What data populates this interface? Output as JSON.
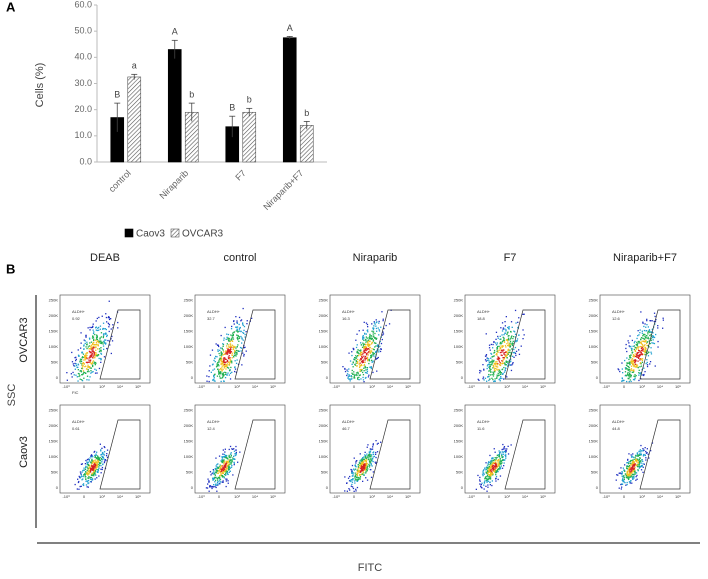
{
  "panels": {
    "a": "A",
    "b": "B"
  },
  "chart_data": {
    "type": "bar",
    "y_label": "Cells (%)",
    "categories": [
      "control",
      "Niraparib",
      "F7",
      "Niraparib+F7"
    ],
    "series": [
      {
        "name": "Caov3",
        "color": "#000000",
        "hatch": false,
        "values": [
          17,
          43,
          13.5,
          47.5
        ],
        "errors": [
          5.5,
          3.5,
          4,
          0.5
        ],
        "letters": [
          "B",
          "A",
          "B",
          "A"
        ]
      },
      {
        "name": "OVCAR3",
        "color": "#ffffff",
        "hatch": true,
        "values": [
          32.5,
          19,
          19,
          14
        ],
        "errors": [
          1,
          3.5,
          1.5,
          1.5
        ],
        "letters": [
          "a",
          "b",
          "b",
          "b"
        ]
      }
    ],
    "ylim": [
      0,
      60
    ],
    "yticks": [
      {
        "value": 0,
        "label": "0.0"
      },
      {
        "value": 10,
        "label": "10.0"
      },
      {
        "value": 20,
        "label": "20.0"
      },
      {
        "value": 30,
        "label": "30.0"
      },
      {
        "value": 40,
        "label": "40.0"
      },
      {
        "value": 50,
        "label": "50.0"
      },
      {
        "value": 60,
        "label": "60.0"
      }
    ]
  },
  "flow": {
    "columns": [
      "DEAB",
      "control",
      "Niraparib",
      "F7",
      "Niraparib+F7"
    ],
    "rows": [
      "OVCAR3",
      "Caov3"
    ],
    "y_label": "SSC",
    "x_label": "FITC",
    "panel_x_label": "FIC",
    "gate": "ALDH+",
    "gate_values": [
      [
        "0.92",
        "32.7",
        "16.3",
        "18.8",
        "12.6"
      ],
      [
        "0.61",
        "12.4",
        "46.7",
        "11.6",
        "44.8"
      ]
    ],
    "yticks": [
      "0",
      "50K",
      "100K",
      "150K",
      "200K",
      "250K"
    ],
    "xticks": [
      "-10³",
      "0",
      "10³",
      "10⁴",
      "10⁵"
    ]
  }
}
